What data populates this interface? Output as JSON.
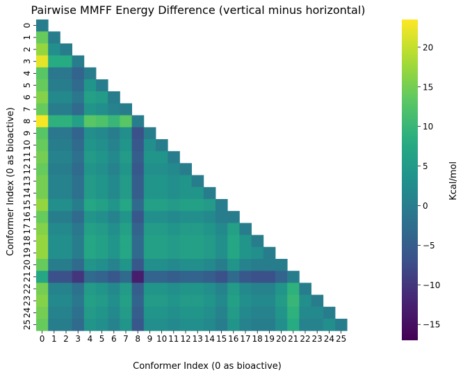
{
  "chart_data": {
    "type": "heatmap",
    "title": "Pairwise MMFF Energy Difference (vertical minus horizontal)",
    "xlabel": "Conformer Index (0 as bioactive)",
    "ylabel": "Conformer Index (0 as bioactive)",
    "colorbar_label": "Kcal/mol",
    "colormap": "viridis",
    "mask": "upper-triangle (row < col hidden)",
    "vmin": -17,
    "vmax": 23.5,
    "colorbar_ticks": [
      -15,
      -10,
      -5,
      0,
      5,
      10,
      15,
      20
    ],
    "colorbar_tick_labels": [
      "−15",
      "−10",
      "−5",
      "0",
      "5",
      "10",
      "15",
      "20"
    ],
    "tick_labels": [
      "0",
      "1",
      "2",
      "3",
      "4",
      "5",
      "6",
      "7",
      "8",
      "9",
      "10",
      "11",
      "12",
      "13",
      "14",
      "15",
      "16",
      "17",
      "18",
      "19",
      "20",
      "21",
      "22",
      "23",
      "24",
      "25"
    ],
    "row_base": [
      0,
      14,
      17,
      22,
      13,
      14,
      16,
      14,
      23,
      13,
      14,
      15,
      14,
      15,
      15,
      17,
      14,
      16,
      17,
      17,
      14,
      7,
      15,
      16,
      15,
      14
    ],
    "col_offset": [
      0,
      -14,
      -14,
      -17,
      -10,
      -11,
      -13,
      -10,
      -20,
      -11,
      -11,
      -12,
      -11,
      -11,
      -12,
      -14,
      -10,
      -13,
      -14,
      -14,
      -11,
      -6,
      -13,
      -13,
      -11,
      0
    ]
  }
}
